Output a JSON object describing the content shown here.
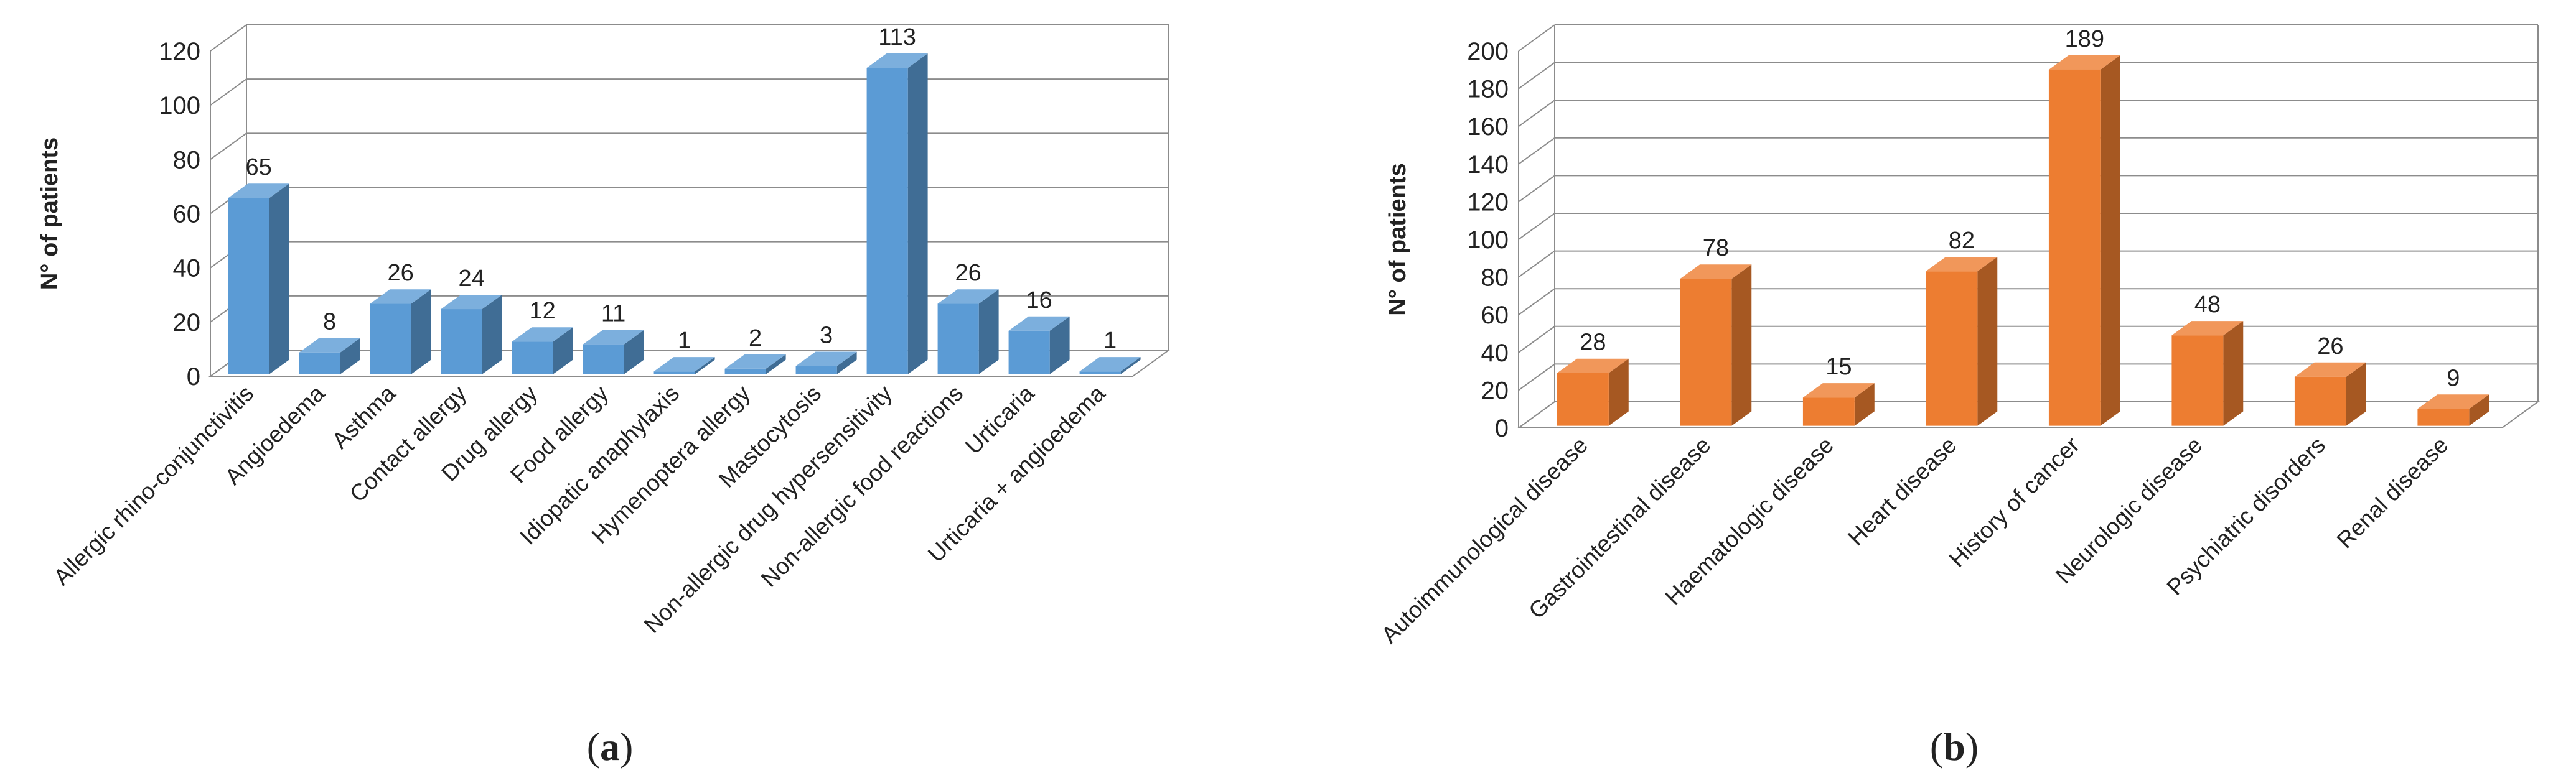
{
  "chart_data": [
    {
      "type": "bar",
      "panel_label": "a",
      "ylabel": "N° of patients",
      "ylim": [
        0,
        120
      ],
      "yticks": [
        0,
        20,
        40,
        60,
        80,
        100,
        120
      ],
      "grid": true,
      "bar_style": "3d",
      "color": "#5b9bd5",
      "categories": [
        "Allergic rhino-conjunctivitis",
        "Angioedema",
        "Asthma",
        "Contact allergy",
        "Drug allergy",
        "Food allergy",
        "Idiopatic anaphylaxis",
        "Hymenoptera allergy",
        "Mastocytosis",
        "Non-allergic drug hypersensitivity",
        "Non-allergic food reactions",
        "Urticaria",
        "Urticaria + angioedema"
      ],
      "values": [
        65,
        8,
        26,
        24,
        12,
        11,
        1,
        2,
        3,
        113,
        26,
        16,
        1
      ]
    },
    {
      "type": "bar",
      "panel_label": "b",
      "ylabel": "N° of patients",
      "ylim": [
        0,
        200
      ],
      "yticks": [
        0,
        20,
        40,
        60,
        80,
        100,
        120,
        140,
        160,
        180,
        200
      ],
      "grid": true,
      "bar_style": "3d",
      "color": "#ed7d31",
      "categories": [
        "Autoimmunological disease",
        "Gastrointestinal disease",
        "Haematologic disease",
        "Heart disease",
        "History of cancer",
        "Neurologic disease",
        "Psychiatric disorders",
        "Renal disease"
      ],
      "values": [
        28,
        78,
        15,
        82,
        189,
        48,
        26,
        9
      ]
    }
  ]
}
